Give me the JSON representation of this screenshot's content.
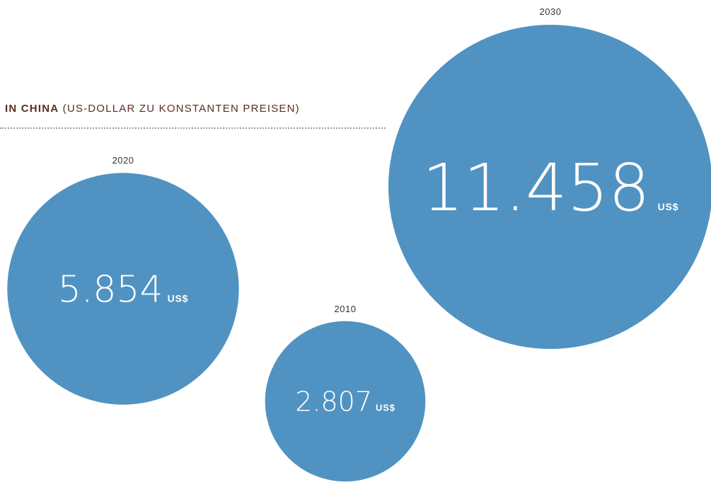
{
  "header": {
    "title_strong": "IN CHINA",
    "title_rest": "(US-DOLLAR ZU KONSTANTEN PREISEN)"
  },
  "colors": {
    "bubble": "#5093c2",
    "headline": "#5a2e22",
    "rule": "#9a9a9a"
  },
  "chart_data": {
    "type": "bubble",
    "title": "IN CHINA (US-DOLLAR ZU KONSTANTEN PREISEN)",
    "unit": "US$",
    "points": [
      {
        "year": "2010",
        "value": 2807,
        "display": "2.807"
      },
      {
        "year": "2020",
        "value": 5854,
        "display": "5.854"
      },
      {
        "year": "2030",
        "value": 11458,
        "display": "11.458"
      }
    ]
  }
}
